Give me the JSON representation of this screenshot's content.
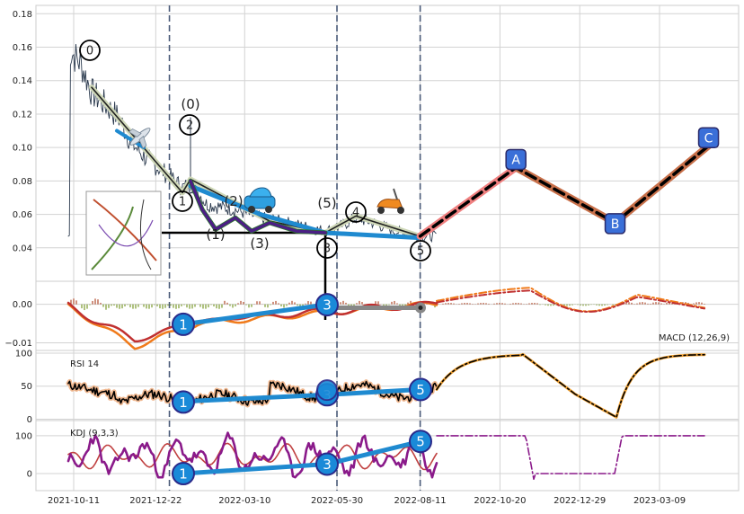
{
  "chart_data": {
    "type": "line",
    "x_ticks": [
      "2021-10-11",
      "2021-12-22",
      "2022-03-10",
      "2022-05-30",
      "2022-08-11",
      "2022-10-20",
      "2022-12-29",
      "2023-03-09"
    ],
    "vlines": [
      "2022-01-03",
      "2022-05-30",
      "2022-08-11"
    ],
    "colors": {
      "price": "#2b3a4e",
      "grid": "#d3d3d3",
      "vline": "#4a5a78",
      "wave": "#1f8ad0",
      "trend": "#4b1f84",
      "projection_up": "#f08080",
      "projection_down": "#c8704a",
      "label_fill": "#3a6fd8",
      "macd": "#f07a1a",
      "macd_signal": "#c03030",
      "rsi": "#000000",
      "kdj_k": "#8a1a8a",
      "kdj_d": "#c04040"
    },
    "panels": [
      {
        "name": "price",
        "ylim": [
          0.02,
          0.185
        ],
        "yticks": [
          "0.04",
          "0.06",
          "0.08",
          "0.10",
          "0.12",
          "0.14",
          "0.16",
          "0.18"
        ],
        "ytick_values": [
          0.04,
          0.06,
          0.08,
          0.1,
          0.12,
          0.14,
          0.16,
          0.18
        ],
        "wave_labels": [
          "0",
          "(0)",
          "2",
          "1",
          "(2)",
          "(1)",
          "(3)",
          "(5)",
          "3",
          "4",
          "5"
        ],
        "projection_labels": [
          "A",
          "B",
          "C"
        ],
        "projection": [
          {
            "date": "2022-08-11",
            "value": 0.047
          },
          {
            "date": "2022-11-03",
            "value": 0.088
          },
          {
            "date": "2023-01-29",
            "value": 0.055
          },
          {
            "date": "2023-04-21",
            "value": 0.101
          }
        ]
      },
      {
        "name": "macd",
        "label": "MACD (12,26,9)",
        "ylim": [
          -0.012,
          0.006
        ],
        "yticks": [
          "0.00",
          "−0.01"
        ],
        "ytick_values": [
          0.0,
          -0.01
        ],
        "wave_labels": [
          "1",
          "3"
        ]
      },
      {
        "name": "rsi",
        "label": "RSI 14",
        "ylim": [
          -2,
          104
        ],
        "yticks": [
          "0",
          "50",
          "100"
        ],
        "ytick_values": [
          0,
          50,
          100
        ],
        "wave_labels": [
          "1",
          "3",
          "5"
        ]
      },
      {
        "name": "kdj",
        "label": "KDJ (9,3,3)",
        "ylim": [
          -45,
          140
        ],
        "yticks": [
          "0",
          "100"
        ],
        "ytick_values": [
          0,
          100
        ],
        "wave_labels": [
          "1",
          "3",
          "5"
        ]
      }
    ]
  }
}
